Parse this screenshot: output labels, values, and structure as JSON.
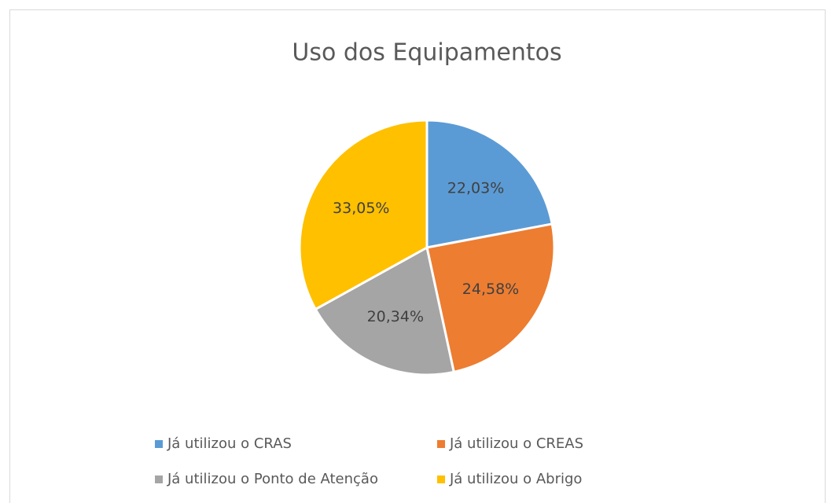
{
  "chart_data": {
    "type": "pie",
    "title": "Uso dos Equipamentos",
    "categories": [
      "Já utilizou o CRAS",
      "Já utilizou o CREAS",
      "Já utilizou o Ponto de Atenção",
      "Já utilizou o Abrigo"
    ],
    "values": [
      22.03,
      24.58,
      20.34,
      33.05
    ],
    "value_labels": [
      "22,03%",
      "24,58%",
      "20,34%",
      "33,05%"
    ],
    "colors": [
      "#5b9bd5",
      "#ed7d31",
      "#a5a5a5",
      "#ffc000"
    ],
    "legend": "bottom"
  }
}
